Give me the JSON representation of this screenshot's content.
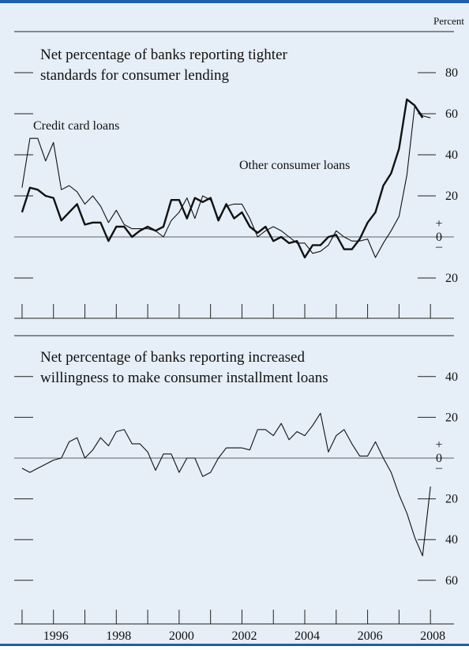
{
  "figure": {
    "unit_label": "Percent",
    "x_tick_labels": [
      "1996",
      "1998",
      "2000",
      "2002",
      "2004",
      "2006",
      "2008"
    ]
  },
  "chart_data": [
    {
      "type": "line",
      "title": "Net percentage of banks reporting tighter standards for consumer lending",
      "title_lines": [
        "Net percentage of banks reporting tighter",
        "standards for consumer lending"
      ],
      "ylabel": "Percent",
      "ylim": [
        -20,
        80
      ],
      "xlim": [
        1995.25,
        2009.25
      ],
      "y_ticks": [
        -20,
        20,
        40,
        60,
        80
      ],
      "y_tick_labels": [
        "20",
        "20",
        "40",
        "60",
        "80"
      ],
      "zero_labels": [
        "+",
        "0",
        "–"
      ],
      "x_tick_labels": [
        "1996",
        "1998",
        "2000",
        "2002",
        "2004",
        "2006",
        "2008"
      ],
      "series": [
        {
          "name": "Credit card loans",
          "style": "thin",
          "x": [
            1995.5,
            1995.75,
            1996.0,
            1996.25,
            1996.5,
            1996.75,
            1997.0,
            1997.25,
            1997.5,
            1997.75,
            1998.0,
            1998.25,
            1998.5,
            1998.75,
            1999.0,
            1999.25,
            1999.5,
            1999.75,
            2000.0,
            2000.25,
            2000.5,
            2000.75,
            2001.0,
            2001.25,
            2001.5,
            2001.75,
            2002.0,
            2002.25,
            2002.5,
            2002.75,
            2003.0,
            2003.25,
            2003.5,
            2003.75,
            2004.0,
            2004.25,
            2004.5,
            2004.75,
            2005.0,
            2005.25,
            2005.5,
            2005.75,
            2006.0,
            2006.25,
            2006.5,
            2006.75,
            2007.0,
            2007.25,
            2007.5,
            2007.75,
            2008.0,
            2008.25,
            2008.5,
            2008.75
          ],
          "values": [
            24,
            48,
            48,
            37,
            46,
            23,
            25,
            22,
            16,
            20,
            15,
            7,
            13,
            6,
            4,
            4,
            4,
            3,
            0,
            8,
            12,
            19,
            9,
            20,
            18,
            9,
            15,
            16,
            16,
            9,
            0,
            3,
            5,
            3,
            0,
            -3,
            -3,
            -8,
            -7,
            -4,
            3,
            0,
            -2,
            -2,
            -1,
            -10,
            -3,
            3,
            10,
            30,
            64,
            59,
            58,
            null
          ]
        },
        {
          "name": "Other consumer loans",
          "style": "thick",
          "x": [
            1995.5,
            1995.75,
            1996.0,
            1996.25,
            1996.5,
            1996.75,
            1997.0,
            1997.25,
            1997.5,
            1997.75,
            1998.0,
            1998.25,
            1998.5,
            1998.75,
            1999.0,
            1999.25,
            1999.5,
            1999.75,
            2000.0,
            2000.25,
            2000.5,
            2000.75,
            2001.0,
            2001.25,
            2001.5,
            2001.75,
            2002.0,
            2002.25,
            2002.5,
            2002.75,
            2003.0,
            2003.25,
            2003.5,
            2003.75,
            2004.0,
            2004.25,
            2004.5,
            2004.75,
            2005.0,
            2005.25,
            2005.5,
            2005.75,
            2006.0,
            2006.25,
            2006.5,
            2006.75,
            2007.0,
            2007.25,
            2007.5,
            2007.75,
            2008.0,
            2008.25,
            2008.5,
            2008.75
          ],
          "values": [
            12,
            24,
            23,
            20,
            19,
            8,
            12,
            16,
            6,
            7,
            7,
            -2,
            5,
            5,
            0,
            3,
            5,
            3,
            5,
            18,
            18,
            9,
            19,
            17,
            19,
            8,
            16,
            9,
            12,
            5,
            2,
            5,
            -2,
            0,
            -3,
            -2,
            -10,
            -4,
            -4,
            0,
            1,
            -6,
            -6,
            -1,
            7,
            12,
            25,
            31,
            43,
            67,
            64,
            58,
            null,
            null
          ]
        }
      ],
      "annotations": [
        "Credit card loans",
        "Other consumer loans"
      ]
    },
    {
      "type": "line",
      "title": "Net percentage of banks reporting increased willingness to make consumer installment loans",
      "title_lines": [
        "Net percentage of banks reporting increased",
        "willingness to make consumer installment loans"
      ],
      "ylabel": "Percent",
      "ylim": [
        -60,
        40
      ],
      "xlim": [
        1995.25,
        2009.25
      ],
      "y_ticks": [
        -60,
        -40,
        -20,
        20,
        40
      ],
      "y_tick_labels": [
        "60",
        "40",
        "20",
        "20",
        "40"
      ],
      "zero_labels": [
        "+",
        "0",
        "–"
      ],
      "x_tick_labels": [
        "1996",
        "1998",
        "2000",
        "2002",
        "2004",
        "2006",
        "2008"
      ],
      "series": [
        {
          "name": "",
          "style": "thin",
          "x": [
            1995.5,
            1995.75,
            1996.0,
            1996.25,
            1996.5,
            1996.75,
            1997.0,
            1997.25,
            1997.5,
            1997.75,
            1998.0,
            1998.25,
            1998.5,
            1998.75,
            1999.0,
            1999.25,
            1999.5,
            1999.75,
            2000.0,
            2000.25,
            2000.5,
            2000.75,
            2001.0,
            2001.25,
            2001.5,
            2001.75,
            2002.0,
            2002.25,
            2002.5,
            2002.75,
            2003.0,
            2003.25,
            2003.5,
            2003.75,
            2004.0,
            2004.25,
            2004.5,
            2004.75,
            2005.0,
            2005.25,
            2005.5,
            2005.75,
            2006.0,
            2006.25,
            2006.5,
            2006.75,
            2007.0,
            2007.25,
            2007.5,
            2007.75,
            2008.0,
            2008.25,
            2008.5,
            2008.75
          ],
          "values": [
            -5,
            -7,
            -5,
            -3,
            -1,
            0,
            8,
            10,
            0,
            4,
            10,
            6,
            13,
            14,
            7,
            7,
            3,
            -6,
            2,
            2,
            -7,
            0,
            0,
            -9,
            -7,
            0,
            5,
            5,
            5,
            4,
            14,
            14,
            11,
            17,
            9,
            13,
            11,
            16,
            22,
            3,
            11,
            14,
            7,
            1,
            1,
            8,
            0,
            -7,
            -18,
            -27,
            -39,
            -48,
            -14,
            null
          ]
        }
      ]
    }
  ],
  "colors": {
    "background": "#e6eef7",
    "accent": "#1f5fa8",
    "line": "#111111"
  }
}
